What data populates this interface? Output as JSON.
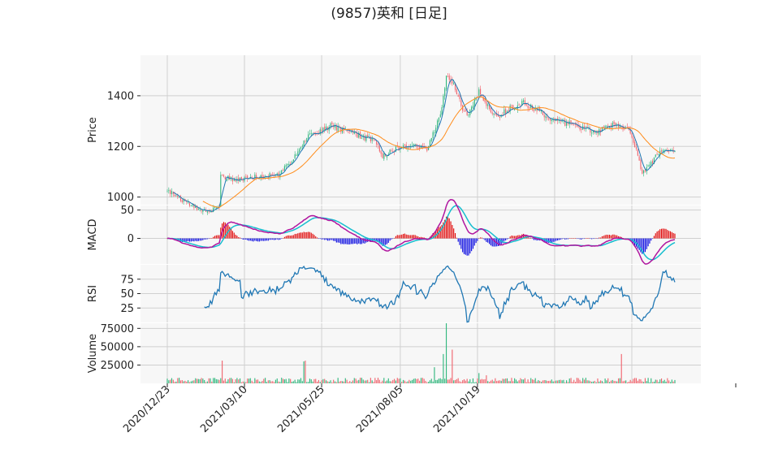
{
  "chart_title": "(9857)英和  [日足]",
  "chart_data": {
    "type": "candlestick",
    "title": "(9857)英和  [日足]",
    "x_tick_labels": [
      "2020/12/23",
      "2021/03/10",
      "2021/05/25",
      "2021/08/05",
      "2021/10/19"
    ],
    "panels": {
      "price": {
        "ylabel": "Price",
        "ylim": [
          970,
          1560
        ],
        "yticks": [
          1000,
          1200,
          1400
        ],
        "key_points": [
          [
            0,
            1030
          ],
          [
            10,
            985
          ],
          [
            20,
            955
          ],
          [
            27,
            940
          ],
          [
            35,
            960
          ],
          [
            36,
            1080
          ],
          [
            45,
            1070
          ],
          [
            60,
            1080
          ],
          [
            75,
            1090
          ],
          [
            85,
            1150
          ],
          [
            95,
            1240
          ],
          [
            110,
            1280
          ],
          [
            125,
            1250
          ],
          [
            140,
            1220
          ],
          [
            145,
            1160
          ],
          [
            155,
            1195
          ],
          [
            170,
            1200
          ],
          [
            175,
            1190
          ],
          [
            180,
            1260
          ],
          [
            185,
            1350
          ],
          [
            188,
            1480
          ],
          [
            192,
            1460
          ],
          [
            198,
            1360
          ],
          [
            203,
            1320
          ],
          [
            210,
            1420
          ],
          [
            215,
            1370
          ],
          [
            222,
            1310
          ],
          [
            230,
            1350
          ],
          [
            240,
            1370
          ],
          [
            250,
            1340
          ],
          [
            260,
            1300
          ],
          [
            270,
            1290
          ],
          [
            280,
            1270
          ],
          [
            290,
            1260
          ],
          [
            300,
            1285
          ],
          [
            310,
            1270
          ],
          [
            315,
            1200
          ],
          [
            320,
            1095
          ],
          [
            325,
            1120
          ],
          [
            330,
            1170
          ],
          [
            337,
            1180
          ],
          [
            342,
            1175
          ]
        ],
        "ma_short_period": 5,
        "ma_long_period": 25,
        "ma_short_color": "#1f77b4",
        "ma_long_color": "#ff8c1a"
      },
      "macd": {
        "ylabel": "MACD",
        "yticks": [
          0,
          50
        ],
        "ylim": [
          -45,
          58
        ],
        "macd_color": "#b0169f",
        "signal_color": "#17becf",
        "hist_pos_color": "#e00000",
        "hist_neg_color": "#0000e0"
      },
      "rsi": {
        "ylabel": "RSI",
        "yticks": [
          25,
          50,
          75
        ],
        "ylim": [
          0,
          100
        ],
        "line_color": "#1f77b4"
      },
      "volume": {
        "ylabel": "Volume",
        "yticks": [
          25000,
          50000,
          75000
        ],
        "ylim": [
          0,
          82000
        ],
        "up_color": "#2bb57a",
        "down_color": "#f0606a",
        "spikes": [
          [
            188,
            82000
          ],
          [
            192,
            46000
          ],
          [
            186,
            40000
          ],
          [
            306,
            40000
          ],
          [
            92,
            30000
          ],
          [
            93,
            31000
          ],
          [
            37,
            31000
          ],
          [
            180,
            22000
          ],
          [
            210,
            14000
          ],
          [
            215,
            11000
          ]
        ]
      }
    },
    "colors": {
      "up_candle": "#2bb57a",
      "down_candle": "#f0606a",
      "panel_background": "#f7f7f7",
      "grid": "#d0d0d0"
    }
  }
}
